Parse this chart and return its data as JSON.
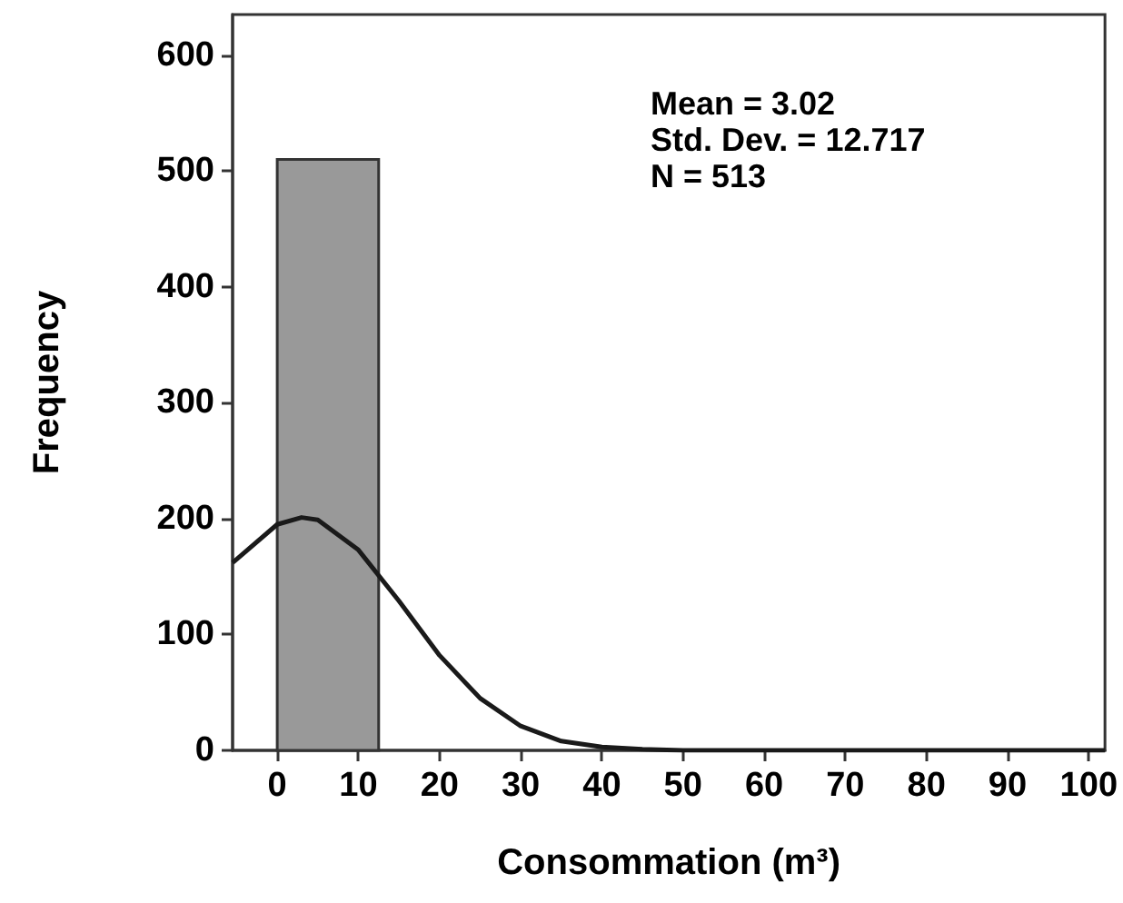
{
  "chart_data": {
    "type": "histogram",
    "xlabel": "Consommation (m³)",
    "ylabel": "Frequency",
    "bins": [
      0,
      12.5,
      25,
      37.5,
      50,
      62.5,
      75,
      87.5,
      100
    ],
    "values": [
      510,
      0,
      0,
      0,
      0,
      0,
      0,
      0
    ],
    "color": "#999999",
    "series": [
      {
        "type": "line",
        "color": "#1a1a1a",
        "x": [
          -5.5,
          -5,
          0,
          3,
          5,
          10,
          15,
          20,
          25,
          30,
          35,
          40,
          45,
          50,
          60,
          70,
          80,
          90,
          100,
          102
        ],
        "values": [
          162,
          165,
          195,
          201,
          199,
          173,
          129,
          82,
          45,
          21,
          8,
          3,
          1,
          0,
          0,
          0,
          0,
          0,
          0,
          0
        ]
      }
    ],
    "annotations": [
      "Mean = 3.02",
      "Std. Dev. = 12.717",
      "N = 513"
    ],
    "xlim": [
      -5.5,
      102
    ],
    "xticks": [
      0,
      10,
      20,
      30,
      40,
      50,
      60,
      70,
      80,
      90,
      100
    ],
    "ylim": [
      0,
      635
    ],
    "yticks": [
      0,
      100,
      200,
      300,
      400,
      500,
      600
    ],
    "grid": false
  }
}
